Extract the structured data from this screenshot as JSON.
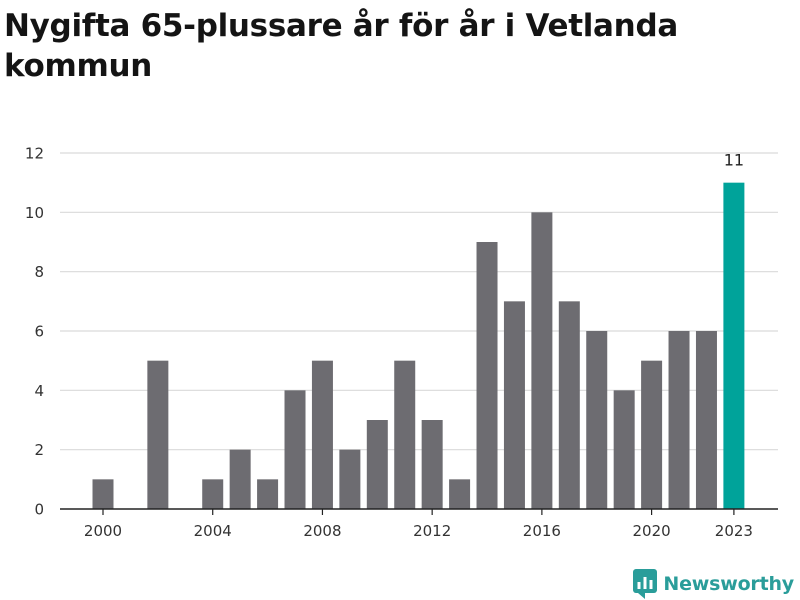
{
  "title": "Nygifta 65-plussare år för år i Vetlanda kommun",
  "brand": {
    "name": "Newsworthy",
    "logo_icon": "newsworthy-logo-icon"
  },
  "colors": {
    "bar": "#6d6c71",
    "highlight": "#00a39a",
    "grid": "#d9d9d9",
    "axis": "#222222",
    "brand": "#2a9d9a"
  },
  "chart_data": {
    "type": "bar",
    "title": "Nygifta 65-plussare år för år i Vetlanda kommun",
    "xlabel": "",
    "ylabel": "",
    "x": [
      2000,
      2001,
      2002,
      2003,
      2004,
      2005,
      2006,
      2007,
      2008,
      2009,
      2010,
      2011,
      2012,
      2013,
      2014,
      2015,
      2016,
      2017,
      2018,
      2019,
      2020,
      2021,
      2022,
      2023
    ],
    "values": [
      1,
      0,
      5,
      0,
      1,
      2,
      1,
      4,
      5,
      2,
      3,
      5,
      3,
      1,
      9,
      7,
      10,
      7,
      6,
      4,
      5,
      6,
      6,
      11
    ],
    "highlight": {
      "x": 2023,
      "value": 11,
      "label": "11"
    },
    "ylim": [
      0,
      12
    ],
    "yticks": [
      0,
      2,
      4,
      6,
      8,
      10,
      12
    ],
    "xticks": [
      2000,
      2004,
      2008,
      2012,
      2016,
      2020,
      2023
    ],
    "grid": true
  }
}
